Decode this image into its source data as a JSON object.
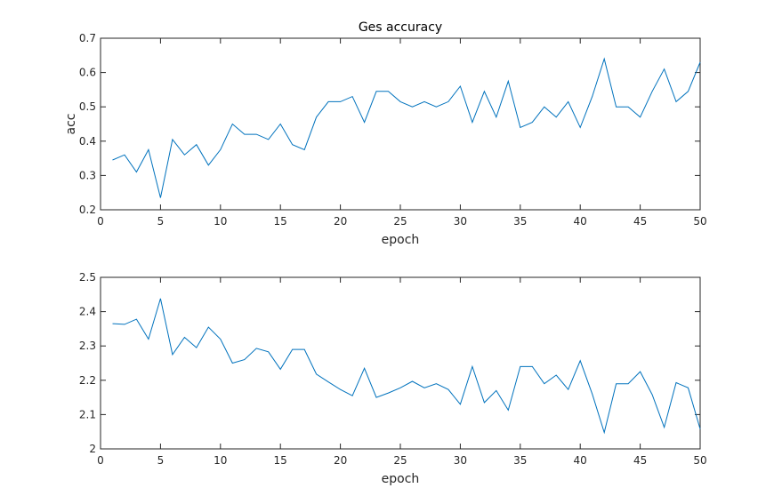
{
  "chart_data": [
    {
      "type": "line",
      "title": "Ges accuracy",
      "xlabel": "epoch",
      "ylabel": "acc",
      "xlim": [
        0,
        50
      ],
      "ylim": [
        0.2,
        0.7
      ],
      "xticks": [
        "0",
        "5",
        "10",
        "15",
        "20",
        "25",
        "30",
        "35",
        "40",
        "45",
        "50"
      ],
      "yticks": [
        "0.2",
        "0.3",
        "0.4",
        "0.5",
        "0.6",
        "0.7"
      ],
      "grid": false,
      "color": "#0072BD",
      "x": [
        1,
        2,
        3,
        4,
        5,
        6,
        7,
        8,
        9,
        10,
        11,
        12,
        13,
        14,
        15,
        16,
        17,
        18,
        19,
        20,
        21,
        22,
        23,
        24,
        25,
        26,
        27,
        28,
        29,
        30,
        31,
        32,
        33,
        34,
        35,
        36,
        37,
        38,
        39,
        40,
        41,
        42,
        43,
        44,
        45,
        46,
        47,
        48,
        49,
        50
      ],
      "y": [
        0.345,
        0.36,
        0.31,
        0.375,
        0.235,
        0.405,
        0.36,
        0.39,
        0.33,
        0.375,
        0.45,
        0.42,
        0.42,
        0.405,
        0.45,
        0.39,
        0.375,
        0.47,
        0.515,
        0.515,
        0.53,
        0.455,
        0.545,
        0.545,
        0.515,
        0.5,
        0.515,
        0.5,
        0.515,
        0.56,
        0.455,
        0.545,
        0.47,
        0.575,
        0.44,
        0.455,
        0.5,
        0.47,
        0.515,
        0.44,
        0.53,
        0.64,
        0.5,
        0.5,
        0.47,
        0.545,
        0.61,
        0.515,
        0.545,
        0.63
      ]
    },
    {
      "type": "line",
      "title": "",
      "xlabel": "epoch",
      "ylabel": "",
      "xlim": [
        0,
        50
      ],
      "ylim": [
        2.0,
        2.5
      ],
      "xticks": [
        "0",
        "5",
        "10",
        "15",
        "20",
        "25",
        "30",
        "35",
        "40",
        "45",
        "50"
      ],
      "yticks": [
        "2",
        "2.1",
        "2.2",
        "2.3",
        "2.4",
        "2.5"
      ],
      "grid": false,
      "color": "#0072BD",
      "x": [
        1,
        2,
        3,
        4,
        5,
        6,
        7,
        8,
        9,
        10,
        11,
        12,
        13,
        14,
        15,
        16,
        17,
        18,
        19,
        20,
        21,
        22,
        23,
        24,
        25,
        26,
        27,
        28,
        29,
        30,
        31,
        32,
        33,
        34,
        35,
        36,
        37,
        38,
        39,
        40,
        41,
        42,
        43,
        44,
        45,
        46,
        47,
        48,
        49,
        50
      ],
      "y": [
        2.365,
        2.363,
        2.378,
        2.32,
        2.438,
        2.275,
        2.325,
        2.295,
        2.355,
        2.32,
        2.25,
        2.26,
        2.293,
        2.283,
        2.232,
        2.29,
        2.29,
        2.218,
        2.195,
        2.173,
        2.155,
        2.235,
        2.15,
        2.163,
        2.178,
        2.197,
        2.178,
        2.19,
        2.173,
        2.13,
        2.24,
        2.135,
        2.17,
        2.113,
        2.24,
        2.24,
        2.19,
        2.215,
        2.173,
        2.257,
        2.16,
        2.048,
        2.19,
        2.19,
        2.225,
        2.158,
        2.063,
        2.193,
        2.178,
        2.058
      ]
    }
  ]
}
